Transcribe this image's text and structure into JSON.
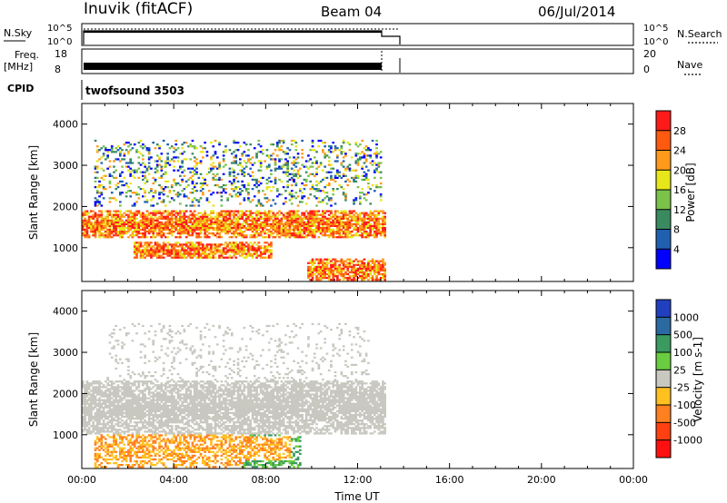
{
  "header": {
    "station": "Inuvik (fitACF)",
    "beam": "Beam 04",
    "date": "06/Jul/2014"
  },
  "top_panels": {
    "nsky_label": "N.Sky",
    "nsky_ticks": [
      "10^5",
      "10^0"
    ],
    "nsky_right_ticks": [
      "10^5",
      "10^0"
    ],
    "nsearch_label": "N.Search",
    "freq_label": "Freq.",
    "freq_unit": "[MHz]",
    "freq_ticks": [
      "18",
      "8"
    ],
    "nave_ticks": [
      "20",
      "0"
    ],
    "nave_label": "Nave",
    "cpid_label": "CPID",
    "cpid_value": "twofsound 3503"
  },
  "axes": {
    "ylabel": "Slant Range [km]",
    "xlabel": "Time UT",
    "x_ticks": [
      "00:00",
      "04:00",
      "08:00",
      "12:00",
      "16:00",
      "20:00",
      "00:00"
    ],
    "y_ticks": [
      "1000",
      "2000",
      "3000",
      "4000"
    ]
  },
  "chart_data": [
    {
      "type": "heatmap",
      "title": "",
      "xlabel": "Time UT",
      "ylabel": "Slant Range [km]",
      "xlim_hours": [
        0,
        24
      ],
      "ylim_km": [
        180,
        4500
      ],
      "data_end_hour": 13.2,
      "colorbar": {
        "label": "Power [dB]",
        "ticks": [
          "4",
          "8",
          "12",
          "16",
          "20",
          "24",
          "28"
        ],
        "colors": [
          "#0000ff",
          "#2060b0",
          "#3a8a60",
          "#7ac24a",
          "#e6e61a",
          "#ff9a1a",
          "#ff5a10",
          "#ff1a1a"
        ]
      },
      "bands": [
        {
          "range_km": [
            1200,
            1900
          ],
          "hours": [
            0,
            13.2
          ],
          "level": "high"
        },
        {
          "range_km": [
            700,
            1100
          ],
          "hours": [
            2.2,
            8.2
          ],
          "level": "high"
        },
        {
          "range_km": [
            200,
            700
          ],
          "hours": [
            9.8,
            13.2
          ],
          "level": "high"
        },
        {
          "range_km": [
            2000,
            3600
          ],
          "hours": [
            0.5,
            13
          ],
          "level": "mixed"
        }
      ]
    },
    {
      "type": "heatmap",
      "title": "",
      "xlabel": "Time UT",
      "ylabel": "Slant Range [km]",
      "xlim_hours": [
        0,
        24
      ],
      "ylim_km": [
        180,
        4500
      ],
      "data_end_hour": 13.2,
      "colorbar": {
        "label": "Velocity [m s-1]",
        "ticks": [
          "1000",
          "500",
          "100",
          "25",
          "-25",
          "-100",
          "-500",
          "-1000"
        ],
        "colors": [
          "#2040c0",
          "#2a6aa0",
          "#3a9a60",
          "#6acc40",
          "#c8c8c0",
          "#ffc020",
          "#ff8020",
          "#ff4010",
          "#ff1010"
        ]
      },
      "bands": [
        {
          "range_km": [
            1000,
            2300
          ],
          "hours": [
            0,
            13.2
          ],
          "level": "near-zero"
        },
        {
          "range_km": [
            200,
            1100
          ],
          "hours": [
            0.5,
            9
          ],
          "level": "negative"
        },
        {
          "range_km": [
            200,
            1000
          ],
          "hours": [
            7,
            9.5
          ],
          "level": "positive"
        }
      ]
    }
  ]
}
